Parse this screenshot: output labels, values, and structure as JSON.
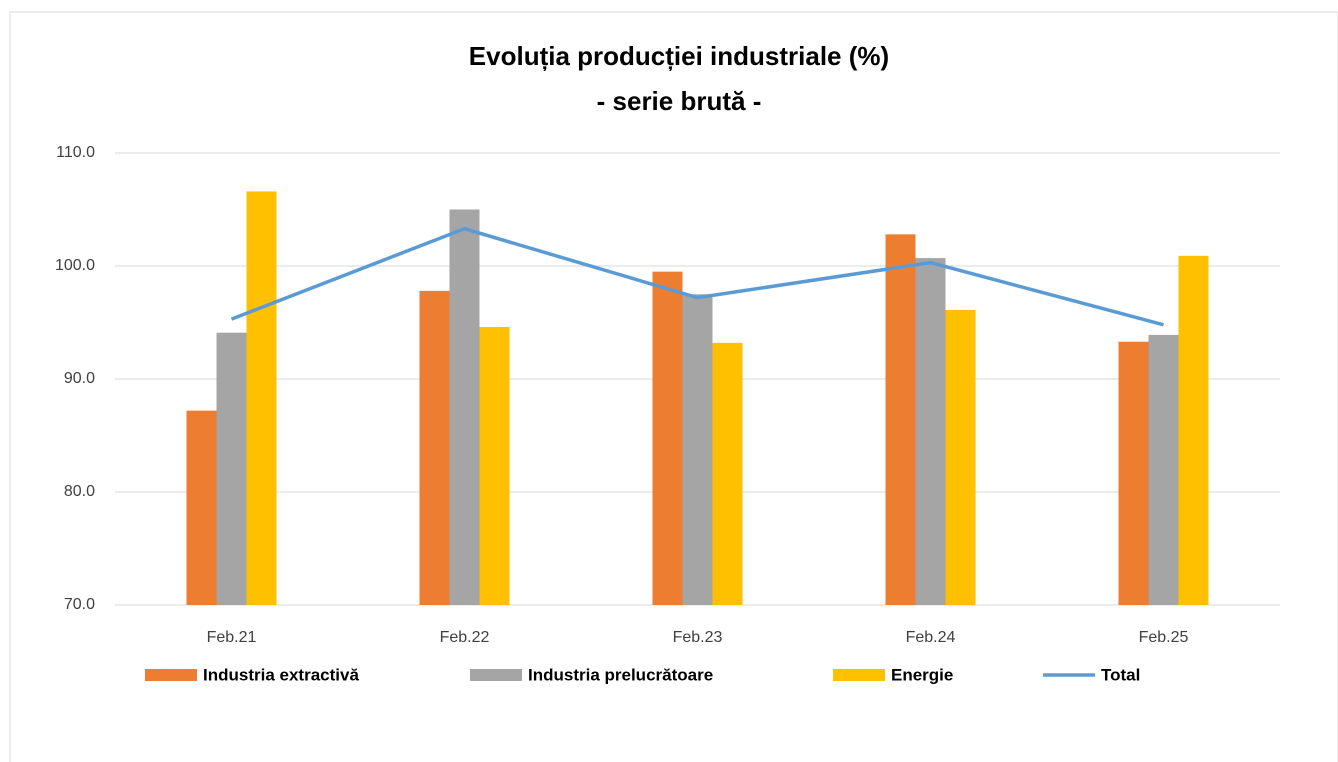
{
  "chart_data": {
    "type": "bar",
    "title": "Evoluția producției industriale (%)",
    "subtitle": "- serie brută -",
    "categories": [
      "Feb.21",
      "Feb.22",
      "Feb.23",
      "Feb.24",
      "Feb.25"
    ],
    "series": [
      {
        "name": "Industria extractivă",
        "color": "#ed7d31",
        "values": [
          87.2,
          97.8,
          99.5,
          102.8,
          93.3
        ]
      },
      {
        "name": "Industria prelucrătoare",
        "color": "#a5a5a5",
        "values": [
          94.1,
          105.0,
          97.5,
          100.7,
          93.9
        ]
      },
      {
        "name": "Energie",
        "color": "#ffc000",
        "values": [
          106.6,
          94.6,
          93.2,
          96.1,
          100.9
        ]
      },
      {
        "name": "Total",
        "color": "#5b9bd5",
        "type": "line",
        "values": [
          95.3,
          103.3,
          97.2,
          100.3,
          94.8
        ]
      }
    ],
    "ylim": [
      70,
      110
    ],
    "yticks": [
      {
        "value": 70,
        "label": "70.0"
      },
      {
        "value": 80,
        "label": "80.0"
      },
      {
        "value": 90,
        "label": "90.0"
      },
      {
        "value": 100,
        "label": "100.0"
      },
      {
        "value": 110,
        "label": "110.0"
      }
    ],
    "grid": true
  }
}
